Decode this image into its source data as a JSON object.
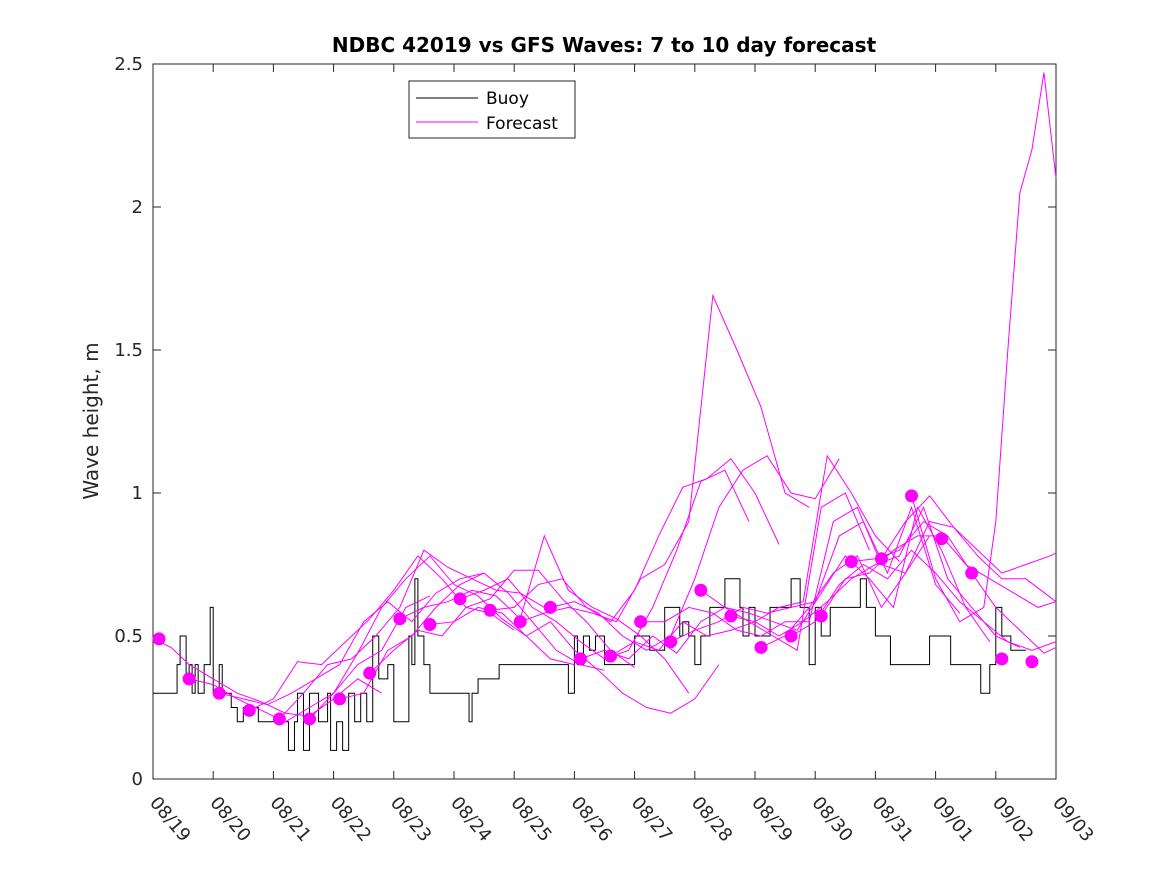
{
  "chart_data": {
    "type": "line",
    "title": "NDBC 42019 vs GFS Waves: 7 to 10 day forecast",
    "xlabel": "",
    "ylabel": "Wave height, m",
    "xlim": [
      0,
      15
    ],
    "ylim": [
      0,
      2.5
    ],
    "y_ticks": [
      "0",
      "0.5",
      "1",
      "1.5",
      "2",
      "2.5"
    ],
    "x_tick_labels": [
      "08/19",
      "08/20",
      "08/21",
      "08/22",
      "08/23",
      "08/24",
      "08/25",
      "08/26",
      "08/27",
      "08/28",
      "08/29",
      "08/30",
      "08/31",
      "09/01",
      "09/02",
      "09/03"
    ],
    "colors": {
      "buoy": "#000000",
      "forecast": "#ff00ff"
    },
    "legend": {
      "position": "top-left",
      "entries": [
        {
          "label": "Buoy",
          "color": "#000000"
        },
        {
          "label": "Forecast",
          "color": "#ff00ff"
        }
      ]
    },
    "series": [
      {
        "name": "Buoy",
        "x": [
          0,
          0.4,
          0.45,
          0.55,
          0.6,
          0.65,
          0.7,
          0.75,
          0.85,
          0.95,
          1.0,
          1.1,
          1.15,
          1.25,
          1.3,
          1.4,
          1.5,
          1.75,
          1.85,
          2.0,
          2.25,
          2.35,
          2.4,
          2.5,
          2.6,
          2.75,
          2.9,
          2.95,
          3.05,
          3.15,
          3.25,
          3.35,
          3.45,
          3.55,
          3.65,
          3.75,
          3.9,
          4.0,
          4.25,
          4.3,
          4.35,
          4.4,
          4.5,
          4.6,
          4.75,
          4.9,
          5.25,
          5.3,
          5.4,
          5.5,
          5.75,
          5.9,
          6.2,
          6.5,
          6.9,
          7.0,
          7.05,
          7.15,
          7.25,
          7.35,
          7.5,
          7.75,
          8.0,
          8.25,
          8.5,
          8.75,
          8.8,
          8.9,
          9.0,
          9.1,
          9.25,
          9.5,
          9.75,
          9.8,
          9.9,
          10.0,
          10.25,
          10.5,
          10.6,
          10.75,
          10.9,
          11.0,
          11.1,
          11.25,
          11.5,
          11.75,
          11.85,
          12.0,
          12.25,
          12.5,
          12.75,
          12.9,
          13.25,
          13.5,
          13.75,
          13.9,
          14.0,
          14.1,
          14.25
        ],
        "values": [
          0.3,
          0.4,
          0.5,
          0.35,
          0.4,
          0.3,
          0.4,
          0.3,
          0.4,
          0.6,
          0.3,
          0.4,
          0.3,
          0.3,
          0.25,
          0.2,
          0.25,
          0.2,
          0.2,
          0.2,
          0.1,
          0.2,
          0.3,
          0.1,
          0.3,
          0.2,
          0.3,
          0.1,
          0.2,
          0.1,
          0.3,
          0.2,
          0.3,
          0.2,
          0.5,
          0.35,
          0.4,
          0.2,
          0.5,
          0.4,
          0.7,
          0.5,
          0.4,
          0.3,
          0.3,
          0.3,
          0.2,
          0.3,
          0.35,
          0.35,
          0.4,
          0.4,
          0.4,
          0.4,
          0.3,
          0.5,
          0.4,
          0.5,
          0.45,
          0.5,
          0.4,
          0.4,
          0.5,
          0.45,
          0.6,
          0.5,
          0.55,
          0.5,
          0.4,
          0.5,
          0.6,
          0.7,
          0.6,
          0.5,
          0.6,
          0.5,
          0.6,
          0.6,
          0.7,
          0.6,
          0.4,
          0.6,
          0.5,
          0.6,
          0.6,
          0.7,
          0.6,
          0.5,
          0.4,
          0.4,
          0.4,
          0.5,
          0.4,
          0.4,
          0.3,
          0.4,
          0.6,
          0.5,
          0.45
        ]
      },
      {
        "name": "Forecast markers",
        "x": [
          0.1,
          0.6,
          1.1,
          1.6,
          2.1,
          2.6,
          3.1,
          3.6,
          4.1,
          4.6,
          5.1,
          5.6,
          6.1,
          6.6,
          7.1,
          7.6,
          8.1,
          8.6,
          9.1,
          9.6,
          10.1,
          10.6,
          11.1,
          11.6,
          12.1,
          12.6,
          13.1,
          13.6,
          14.1,
          14.6
        ],
        "values": [
          0.49,
          0.35,
          0.3,
          0.24,
          0.21,
          0.21,
          0.28,
          0.37,
          0.56,
          0.54,
          0.63,
          0.59,
          0.55,
          0.6,
          0.42,
          0.43,
          0.55,
          0.48,
          0.66,
          0.57,
          0.46,
          0.5,
          0.57,
          0.76,
          0.77,
          0.99,
          0.84,
          0.72,
          0.42,
          0.41
        ]
      },
      {
        "name": "Forecast run 1",
        "x": [
          0.0,
          0.3,
          0.6,
          1.0,
          1.4,
          1.8,
          2.2,
          2.6,
          3.0,
          3.4,
          3.8
        ],
        "values": [
          0.49,
          0.46,
          0.4,
          0.35,
          0.3,
          0.27,
          0.23,
          0.22,
          0.28,
          0.35,
          0.3
        ]
      },
      {
        "name": "Forecast run 2",
        "x": [
          0.6,
          1.0,
          1.4,
          1.8,
          2.2,
          2.6,
          3.0,
          3.4,
          3.8,
          4.2,
          4.6
        ],
        "values": [
          0.35,
          0.33,
          0.28,
          0.24,
          0.2,
          0.25,
          0.3,
          0.4,
          0.45,
          0.6,
          0.64
        ]
      },
      {
        "name": "Forecast run 3",
        "x": [
          1.1,
          1.5,
          1.9,
          2.3,
          2.7,
          3.1,
          3.5,
          3.9,
          4.3,
          4.7,
          5.1,
          5.5
        ],
        "values": [
          0.3,
          0.28,
          0.26,
          0.3,
          0.35,
          0.4,
          0.55,
          0.62,
          0.55,
          0.65,
          0.7,
          0.72
        ]
      },
      {
        "name": "Forecast run 4",
        "x": [
          1.6,
          2.0,
          2.4,
          2.8,
          3.2,
          3.6,
          4.0,
          4.4,
          4.8,
          5.2,
          5.6,
          6.0
        ],
        "values": [
          0.24,
          0.28,
          0.41,
          0.4,
          0.48,
          0.56,
          0.66,
          0.78,
          0.7,
          0.6,
          0.58,
          0.52
        ]
      },
      {
        "name": "Forecast run 5",
        "x": [
          2.1,
          2.5,
          2.9,
          3.3,
          3.7,
          4.1,
          4.5,
          4.9,
          5.3,
          5.7,
          6.1,
          6.5
        ],
        "values": [
          0.21,
          0.3,
          0.4,
          0.42,
          0.5,
          0.6,
          0.8,
          0.74,
          0.7,
          0.66,
          0.65,
          0.6
        ]
      },
      {
        "name": "Forecast run 6",
        "x": [
          2.6,
          3.0,
          3.4,
          3.8,
          4.2,
          4.6,
          5.0,
          5.4,
          5.8,
          6.2,
          6.6,
          7.0
        ],
        "values": [
          0.21,
          0.3,
          0.44,
          0.6,
          0.7,
          0.78,
          0.68,
          0.64,
          0.56,
          0.5,
          0.42,
          0.4
        ]
      },
      {
        "name": "Forecast run 7",
        "x": [
          3.1,
          3.5,
          3.9,
          4.3,
          4.7,
          5.1,
          5.5,
          5.9,
          6.3,
          6.7,
          7.1,
          7.5
        ],
        "values": [
          0.28,
          0.3,
          0.45,
          0.5,
          0.6,
          0.68,
          0.72,
          0.65,
          0.55,
          0.45,
          0.4,
          0.38
        ]
      },
      {
        "name": "Forecast run 8",
        "x": [
          3.6,
          4.0,
          4.4,
          4.8,
          5.2,
          5.6,
          6.0,
          6.4,
          6.8,
          7.2,
          7.6,
          8.0
        ],
        "values": [
          0.37,
          0.45,
          0.52,
          0.5,
          0.6,
          0.63,
          0.73,
          0.73,
          0.63,
          0.55,
          0.45,
          0.39
        ]
      },
      {
        "name": "Forecast run 9",
        "x": [
          4.1,
          4.5,
          4.9,
          5.3,
          5.7,
          6.1,
          6.5,
          6.9,
          7.3,
          7.7,
          8.1,
          8.5,
          8.9
        ],
        "values": [
          0.56,
          0.6,
          0.62,
          0.66,
          0.64,
          0.56,
          0.85,
          0.66,
          0.6,
          0.56,
          0.5,
          0.42,
          0.3
        ]
      },
      {
        "name": "Forecast run 10",
        "x": [
          4.6,
          5.0,
          5.4,
          5.8,
          6.2,
          6.6,
          7.0,
          7.4,
          7.8,
          8.2,
          8.6,
          9.0,
          9.4
        ],
        "values": [
          0.54,
          0.55,
          0.6,
          0.58,
          0.5,
          0.55,
          0.45,
          0.38,
          0.3,
          0.25,
          0.23,
          0.28,
          0.4
        ]
      },
      {
        "name": "Forecast run 11",
        "x": [
          5.1,
          5.5,
          5.9,
          6.3,
          6.7,
          7.1,
          7.5,
          7.9,
          8.3,
          8.7,
          9.1,
          9.5,
          9.9
        ],
        "values": [
          0.63,
          0.66,
          0.7,
          0.6,
          0.55,
          0.48,
          0.42,
          0.45,
          0.6,
          0.8,
          1.04,
          1.08,
          0.9
        ]
      },
      {
        "name": "Forecast run 12",
        "x": [
          5.6,
          6.0,
          6.4,
          6.8,
          7.2,
          7.6,
          8.0,
          8.4,
          8.8,
          9.2,
          9.6,
          10.0,
          10.4
        ],
        "values": [
          0.59,
          0.6,
          0.68,
          0.7,
          0.6,
          0.55,
          0.66,
          0.85,
          1.02,
          1.05,
          1.12,
          1.0,
          0.82
        ]
      },
      {
        "name": "Forecast run 13",
        "x": [
          6.1,
          6.5,
          6.9,
          7.3,
          7.7,
          8.1,
          8.5,
          8.9,
          9.3,
          9.7,
          10.1,
          10.5,
          10.9
        ],
        "values": [
          0.55,
          0.58,
          0.6,
          0.58,
          0.55,
          0.7,
          0.75,
          0.9,
          1.69,
          1.5,
          1.3,
          1.0,
          0.95
        ]
      },
      {
        "name": "Forecast run 14",
        "x": [
          6.6,
          7.0,
          7.4,
          7.8,
          8.2,
          8.6,
          9.0,
          9.4,
          9.8,
          10.2,
          10.6,
          11.0,
          11.4
        ],
        "values": [
          0.6,
          0.62,
          0.58,
          0.5,
          0.45,
          0.5,
          0.7,
          0.95,
          1.08,
          1.13,
          1.0,
          0.98,
          1.12
        ]
      },
      {
        "name": "Forecast run 15",
        "x": [
          7.1,
          7.5,
          7.9,
          8.3,
          8.7,
          9.1,
          9.5,
          9.9,
          10.3,
          10.7,
          11.1,
          11.5,
          11.9
        ],
        "values": [
          0.42,
          0.45,
          0.42,
          0.5,
          0.44,
          0.55,
          0.6,
          0.55,
          0.5,
          0.45,
          0.95,
          1.0,
          0.8
        ]
      },
      {
        "name": "Forecast run 16",
        "x": [
          7.6,
          8.0,
          8.4,
          8.8,
          9.2,
          9.6,
          10.0,
          10.4,
          10.8,
          11.2,
          11.6,
          12.0,
          12.4
        ],
        "values": [
          0.43,
          0.48,
          0.45,
          0.55,
          0.5,
          0.52,
          0.55,
          0.6,
          0.62,
          1.13,
          1.0,
          0.85,
          0.76
        ]
      },
      {
        "name": "Forecast run 17",
        "x": [
          8.1,
          8.5,
          8.9,
          9.3,
          9.7,
          10.1,
          10.5,
          10.9,
          11.3,
          11.7,
          12.1,
          12.5,
          12.9
        ],
        "values": [
          0.55,
          0.55,
          0.6,
          0.58,
          0.52,
          0.5,
          0.55,
          0.55,
          0.9,
          0.95,
          0.75,
          0.72,
          0.85
        ]
      },
      {
        "name": "Forecast run 18",
        "x": [
          8.6,
          9.0,
          9.4,
          9.8,
          10.2,
          10.6,
          11.0,
          11.4,
          11.8,
          12.2,
          12.6,
          13.0,
          13.4
        ],
        "values": [
          0.48,
          0.52,
          0.55,
          0.6,
          0.58,
          0.6,
          0.62,
          0.85,
          0.9,
          0.72,
          0.95,
          0.68,
          0.58
        ]
      },
      {
        "name": "Forecast run 19",
        "x": [
          9.1,
          9.5,
          9.9,
          10.3,
          10.7,
          11.1,
          11.5,
          11.9,
          12.3,
          12.7,
          13.1,
          13.5,
          13.9
        ],
        "values": [
          0.66,
          0.6,
          0.58,
          0.55,
          0.52,
          0.65,
          0.78,
          0.7,
          0.6,
          0.95,
          0.8,
          0.6,
          0.48
        ]
      },
      {
        "name": "Forecast run 20",
        "x": [
          9.6,
          10.0,
          10.4,
          10.8,
          11.2,
          11.6,
          12.0,
          12.4,
          12.8,
          13.2,
          13.6,
          14.0,
          14.4
        ],
        "values": [
          0.57,
          0.55,
          0.5,
          0.55,
          0.62,
          0.7,
          0.75,
          0.78,
          0.95,
          0.7,
          0.6,
          0.5,
          0.46
        ]
      },
      {
        "name": "Forecast run 21",
        "x": [
          10.1,
          10.5,
          10.9,
          11.3,
          11.7,
          12.1,
          12.5,
          12.9,
          13.3,
          13.7,
          14.1,
          14.5,
          15.0
        ],
        "values": [
          0.46,
          0.5,
          0.6,
          0.72,
          0.78,
          0.6,
          0.72,
          0.9,
          0.88,
          0.78,
          0.7,
          0.7,
          0.62
        ]
      },
      {
        "name": "Forecast run 22",
        "x": [
          10.6,
          11.0,
          11.4,
          11.8,
          12.2,
          12.6,
          13.0,
          13.4,
          13.8,
          14.2,
          14.6,
          15.0
        ],
        "values": [
          0.5,
          0.55,
          0.68,
          0.75,
          0.7,
          0.8,
          0.72,
          0.62,
          0.55,
          0.48,
          0.45,
          0.48
        ]
      },
      {
        "name": "Forecast run 23",
        "x": [
          11.1,
          11.5,
          11.9,
          12.3,
          12.7,
          13.1,
          13.5,
          13.9,
          14.3,
          14.7,
          15.0
        ],
        "values": [
          0.57,
          0.7,
          0.72,
          0.8,
          0.85,
          0.85,
          0.75,
          0.7,
          0.65,
          0.6,
          0.62
        ]
      },
      {
        "name": "Forecast run 24",
        "x": [
          11.6,
          12.0,
          12.4,
          12.8,
          13.2,
          13.6,
          14.0,
          14.4,
          14.8,
          15.0
        ],
        "values": [
          0.76,
          0.77,
          0.8,
          0.9,
          0.85,
          0.72,
          0.6,
          0.52,
          0.44,
          0.46
        ]
      },
      {
        "name": "Forecast run 25",
        "x": [
          12.1,
          12.5,
          12.9,
          13.3,
          13.7,
          14.1,
          14.5,
          14.9,
          15.0
        ],
        "values": [
          0.77,
          0.9,
          0.99,
          0.88,
          0.8,
          0.72,
          0.75,
          0.78,
          0.79
        ]
      },
      {
        "name": "Forecast run 26",
        "x": [
          12.6,
          13.0,
          13.4,
          13.8,
          14.0,
          14.2,
          14.4,
          14.6,
          14.8,
          15.0
        ],
        "values": [
          0.99,
          0.7,
          0.55,
          0.6,
          0.9,
          1.5,
          2.05,
          2.2,
          2.47,
          2.1
        ]
      }
    ]
  }
}
